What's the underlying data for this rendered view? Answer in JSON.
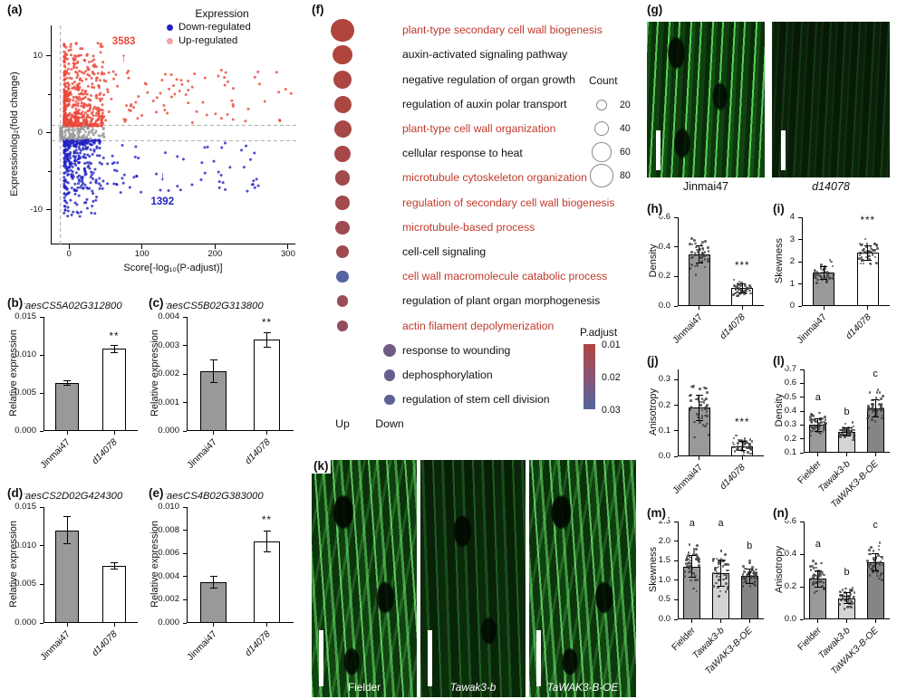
{
  "panel_labels": {
    "a": "(a)",
    "b": "(b)",
    "c": "(c)",
    "d": "(d)",
    "e": "(e)",
    "f": "(f)",
    "g": "(g)",
    "h": "(h)",
    "i": "(i)",
    "j": "(j)",
    "k": "(k)",
    "l": "(l)",
    "m": "(m)",
    "n": "(n)"
  },
  "colors": {
    "up": "#e8473a",
    "down": "#2222c2",
    "up_legend": "#f0a8a4",
    "gray_points": "#9a9a9a",
    "term_red": "#c03a2b",
    "p_low": "#b0453e",
    "p_mid": "#8a5576",
    "p_high": "#5464a0"
  },
  "chart_data": [
    {
      "panel": "a",
      "type": "scatter",
      "ylabel": "Expressionlog₂(fold change)",
      "xlabel": "Score[-log₁₀(P-adjust)]",
      "xticks": [
        0,
        100,
        200,
        300
      ],
      "yticks": [
        10,
        0,
        -10
      ],
      "yticks_minor": [
        5,
        -5
      ],
      "xlim": [
        -25,
        310
      ],
      "ylim": [
        -14.5,
        14
      ],
      "legend_title": "Expression",
      "legend": [
        {
          "label": "Down-regulated",
          "color": "#2222c2"
        },
        {
          "label": "Up-regulated",
          "color": "#f0a8a4"
        }
      ],
      "up_count": "3583",
      "down_count": "1392",
      "up_color": "#e8473a",
      "down_color": "#2222c2"
    },
    {
      "panel": "b",
      "type": "bar",
      "title": "TraesCS5A02G312800",
      "ylabel": "Relative expression",
      "ylim": [
        0,
        0.015
      ],
      "yticks": [
        0,
        0.005,
        0.01,
        0.015
      ],
      "ytick_labels": [
        "0.000",
        "0.005",
        "0.010",
        "0.015"
      ],
      "categories": [
        "Jinmai47",
        "d14078"
      ],
      "italics": [
        false,
        true
      ],
      "values": [
        0.0063,
        0.0108
      ],
      "errors": [
        0.0003,
        0.0005
      ],
      "bar_colors": [
        "#999999",
        "#ffffff"
      ],
      "sig": "**",
      "sig_on": 1
    },
    {
      "panel": "c",
      "type": "bar",
      "title": "TraesCS5B02G313800",
      "ylabel": "Relative expression",
      "ylim": [
        0,
        0.004
      ],
      "yticks": [
        0,
        0.001,
        0.002,
        0.003,
        0.004
      ],
      "ytick_labels": [
        "0.000",
        "0.001",
        "0.002",
        "0.003",
        "0.004"
      ],
      "categories": [
        "Jinmai47",
        "d14078"
      ],
      "italics": [
        false,
        true
      ],
      "values": [
        0.0021,
        0.0032
      ],
      "errors": [
        0.0004,
        0.00025
      ],
      "bar_colors": [
        "#999999",
        "#ffffff"
      ],
      "sig": "**",
      "sig_on": 1
    },
    {
      "panel": "d",
      "type": "bar",
      "title": "TraesCS2D02G424300",
      "ylabel": "Relative expression",
      "ylim": [
        0,
        0.015
      ],
      "yticks": [
        0,
        0.005,
        0.01,
        0.015
      ],
      "ytick_labels": [
        "0.000",
        "0.005",
        "0.010",
        "0.015"
      ],
      "categories": [
        "Jinmai47",
        "d14078"
      ],
      "italics": [
        false,
        true
      ],
      "values": [
        0.012,
        0.0074
      ],
      "errors": [
        0.0018,
        0.0004
      ],
      "bar_colors": [
        "#999999",
        "#ffffff"
      ],
      "sig": null,
      "sig_on": 1
    },
    {
      "panel": "e",
      "type": "bar",
      "title": "TraesCS4B02G383000",
      "ylabel": "Relative expression",
      "ylim": [
        0,
        0.01
      ],
      "yticks": [
        0,
        0.002,
        0.004,
        0.006,
        0.008,
        0.01
      ],
      "ytick_labels": [
        "0.000",
        "0.002",
        "0.004",
        "0.006",
        "0.008",
        "0.010"
      ],
      "categories": [
        "Jinmai47",
        "d14078"
      ],
      "italics": [
        false,
        true
      ],
      "values": [
        0.0035,
        0.007
      ],
      "errors": [
        0.0005,
        0.0009
      ],
      "bar_colors": [
        "#999999",
        "#ffffff"
      ],
      "sig": "**",
      "sig_on": 1
    },
    {
      "panel": "f",
      "type": "dotplot",
      "columns": [
        "Up",
        "Down"
      ],
      "terms": [
        {
          "label": "plant-type secondary cell wall biogenesis",
          "highlight": true,
          "column": "Up",
          "count": 80,
          "p": 0.01
        },
        {
          "label": "auxin-activated signaling pathway",
          "highlight": false,
          "column": "Up",
          "count": 60,
          "p": 0.01
        },
        {
          "label": "negative regulation of organ growth",
          "highlight": false,
          "column": "Up",
          "count": 55,
          "p": 0.011
        },
        {
          "label": "regulation of auxin polar transport",
          "highlight": false,
          "column": "Up",
          "count": 50,
          "p": 0.011
        },
        {
          "label": "plant-type cell wall organization",
          "highlight": true,
          "column": "Up",
          "count": 50,
          "p": 0.012
        },
        {
          "label": "cellular response to heat",
          "highlight": false,
          "column": "Up",
          "count": 45,
          "p": 0.012
        },
        {
          "label": "microtubule cytoskeleton organization",
          "highlight": true,
          "column": "Up",
          "count": 40,
          "p": 0.013
        },
        {
          "label": "regulation of secondary cell wall biogenesis",
          "highlight": true,
          "column": "Up",
          "count": 35,
          "p": 0.013
        },
        {
          "label": "microtubule-based process",
          "highlight": true,
          "column": "Up",
          "count": 32,
          "p": 0.014
        },
        {
          "label": "cell-cell signaling",
          "highlight": false,
          "column": "Up",
          "count": 28,
          "p": 0.014
        },
        {
          "label": "cell wall macromolecule catabolic process",
          "highlight": true,
          "column": "Up",
          "count": 25,
          "p": 0.03
        },
        {
          "label": "regulation of plant organ morphogenesis",
          "highlight": false,
          "column": "Up",
          "count": 22,
          "p": 0.015
        },
        {
          "label": "actin filament depolymerization",
          "highlight": true,
          "column": "Up",
          "count": 16,
          "p": 0.016
        },
        {
          "label": "response to wounding",
          "highlight": false,
          "column": "Down",
          "count": 28,
          "p": 0.024
        },
        {
          "label": "dephosphorylation",
          "highlight": false,
          "column": "Down",
          "count": 22,
          "p": 0.026
        },
        {
          "label": "regulation of stem cell division",
          "highlight": false,
          "column": "Down",
          "count": 16,
          "p": 0.028
        }
      ],
      "count_legend": {
        "title": "Count",
        "values": [
          20,
          40,
          60,
          80
        ]
      },
      "padjust_legend": {
        "title": "P.adjust",
        "ticks": [
          "0.01",
          "0.02",
          "0.03"
        ]
      }
    },
    {
      "panel": "g",
      "type": "micrographs",
      "images": [
        {
          "label": "Jinmai47",
          "italic": false
        },
        {
          "label": "d14078",
          "italic": true
        }
      ]
    },
    {
      "panel": "h",
      "type": "bar",
      "ylabel": "Density",
      "ylim": [
        0,
        0.6
      ],
      "yticks": [
        0,
        0.2,
        0.4,
        0.6
      ],
      "ytick_labels": [
        "0.0",
        "0.2",
        "0.4",
        "0.6"
      ],
      "categories": [
        "Jinmai47",
        "d14078"
      ],
      "italics": [
        false,
        true
      ],
      "values": [
        0.35,
        0.12
      ],
      "errors": [
        0.06,
        0.03
      ],
      "bar_colors": [
        "#999999",
        "#ffffff"
      ],
      "sig": "***",
      "sig_on": 1,
      "jitter": true
    },
    {
      "panel": "i",
      "type": "bar",
      "ylabel": "Skewness",
      "ylim": [
        0,
        4
      ],
      "yticks": [
        0,
        1,
        2,
        3,
        4
      ],
      "ytick_labels": [
        "0",
        "1",
        "2",
        "3",
        "4"
      ],
      "categories": [
        "Jinmai47",
        "d14078"
      ],
      "italics": [
        false,
        true
      ],
      "values": [
        1.5,
        2.4
      ],
      "errors": [
        0.28,
        0.33
      ],
      "bar_colors": [
        "#999999",
        "#ffffff"
      ],
      "sig": "***",
      "sig_on": 1,
      "jitter": true
    },
    {
      "panel": "j",
      "type": "bar",
      "ylabel": "Anisotropy",
      "ylim": [
        0,
        0.34
      ],
      "yticks": [
        0,
        0.1,
        0.2,
        0.3
      ],
      "ytick_labels": [
        "0.0",
        "0.1",
        "0.2",
        "0.3"
      ],
      "categories": [
        "Jinmai47",
        "d14078"
      ],
      "italics": [
        false,
        true
      ],
      "values": [
        0.19,
        0.04
      ],
      "errors": [
        0.05,
        0.018
      ],
      "bar_colors": [
        "#999999",
        "#ffffff"
      ],
      "sig": "***",
      "sig_on": 1,
      "jitter": true
    },
    {
      "panel": "k",
      "type": "micrographs",
      "images": [
        {
          "label": "Fielder",
          "italic": false
        },
        {
          "label": "Tawak3-b",
          "italic": true
        },
        {
          "label": "TaWAK3-B-OE",
          "italic": true
        }
      ]
    },
    {
      "panel": "l",
      "type": "bar",
      "ylabel": "Density",
      "ylim": [
        0.1,
        0.7
      ],
      "yticks": [
        0.1,
        0.2,
        0.3,
        0.4,
        0.5,
        0.6,
        0.7
      ],
      "ytick_labels": [
        "0.1",
        "0.2",
        "0.3",
        "0.4",
        "0.5",
        "0.6",
        "0.7"
      ],
      "categories": [
        "Fielder",
        "Tawak3-b",
        "TaWAK3-B-OE"
      ],
      "italics": [
        false,
        true,
        true
      ],
      "values": [
        0.3,
        0.25,
        0.42
      ],
      "errors": [
        0.045,
        0.028,
        0.06
      ],
      "bar_colors": [
        "#9a9a9a",
        "#d4d4d4",
        "#858585"
      ],
      "letters": [
        "a",
        "b",
        "c"
      ],
      "jitter": true
    },
    {
      "panel": "m",
      "type": "bar",
      "ylabel": "Skewness",
      "ylim": [
        0,
        2.5
      ],
      "yticks": [
        0,
        0.5,
        1,
        1.5,
        2,
        2.5
      ],
      "ytick_labels": [
        "0.0",
        "0.5",
        "1.0",
        "1.5",
        "2.0",
        "2.5"
      ],
      "categories": [
        "Fielder",
        "Tawak3-b",
        "TaWAK3-B-OE"
      ],
      "italics": [
        false,
        true,
        true
      ],
      "values": [
        1.35,
        1.18,
        1.1
      ],
      "errors": [
        0.28,
        0.33,
        0.18
      ],
      "bar_colors": [
        "#9a9a9a",
        "#d4d4d4",
        "#858585"
      ],
      "letters": [
        "a",
        "a",
        "b"
      ],
      "jitter": true
    },
    {
      "panel": "n",
      "type": "bar",
      "ylabel": "Anisotropy",
      "ylim": [
        0,
        0.6
      ],
      "yticks": [
        0,
        0.2,
        0.4,
        0.6
      ],
      "ytick_labels": [
        "0.0",
        "0.2",
        "0.4",
        "0.6"
      ],
      "categories": [
        "Fielder",
        "Tawak3-b",
        "TaWAK3-B-OE"
      ],
      "italics": [
        false,
        true,
        true
      ],
      "values": [
        0.25,
        0.13,
        0.35
      ],
      "errors": [
        0.05,
        0.035,
        0.055
      ],
      "bar_colors": [
        "#9a9a9a",
        "#d4d4d4",
        "#858585"
      ],
      "letters": [
        "a",
        "b",
        "c"
      ],
      "jitter": true
    }
  ]
}
